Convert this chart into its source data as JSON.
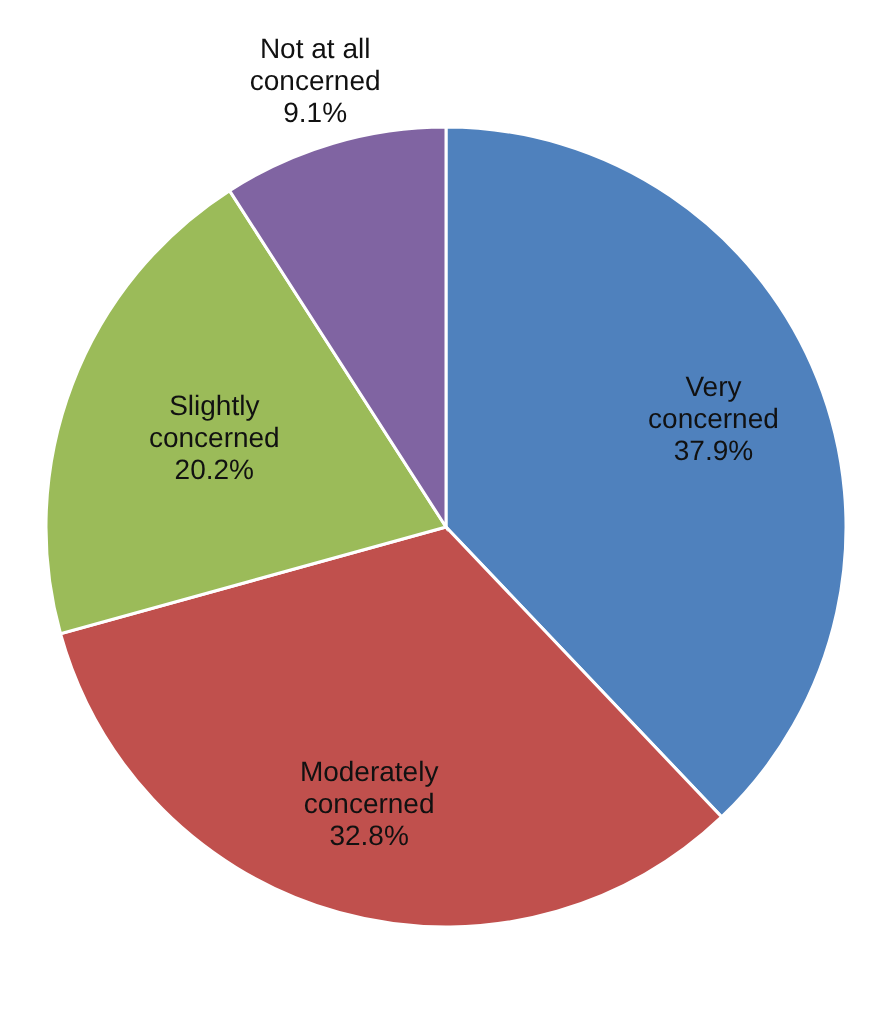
{
  "chart_data": {
    "type": "pie",
    "categories": [
      "Very concerned",
      "Moderately concerned",
      "Slightly concerned",
      "Not at all concerned"
    ],
    "values": [
      37.9,
      32.8,
      20.2,
      9.1
    ],
    "colors": [
      "#4f81bd",
      "#c0504d",
      "#9bbb59",
      "#8064a2"
    ],
    "value_labels": [
      "37.9%",
      "32.8%",
      "20.2%",
      "9.1%"
    ]
  }
}
